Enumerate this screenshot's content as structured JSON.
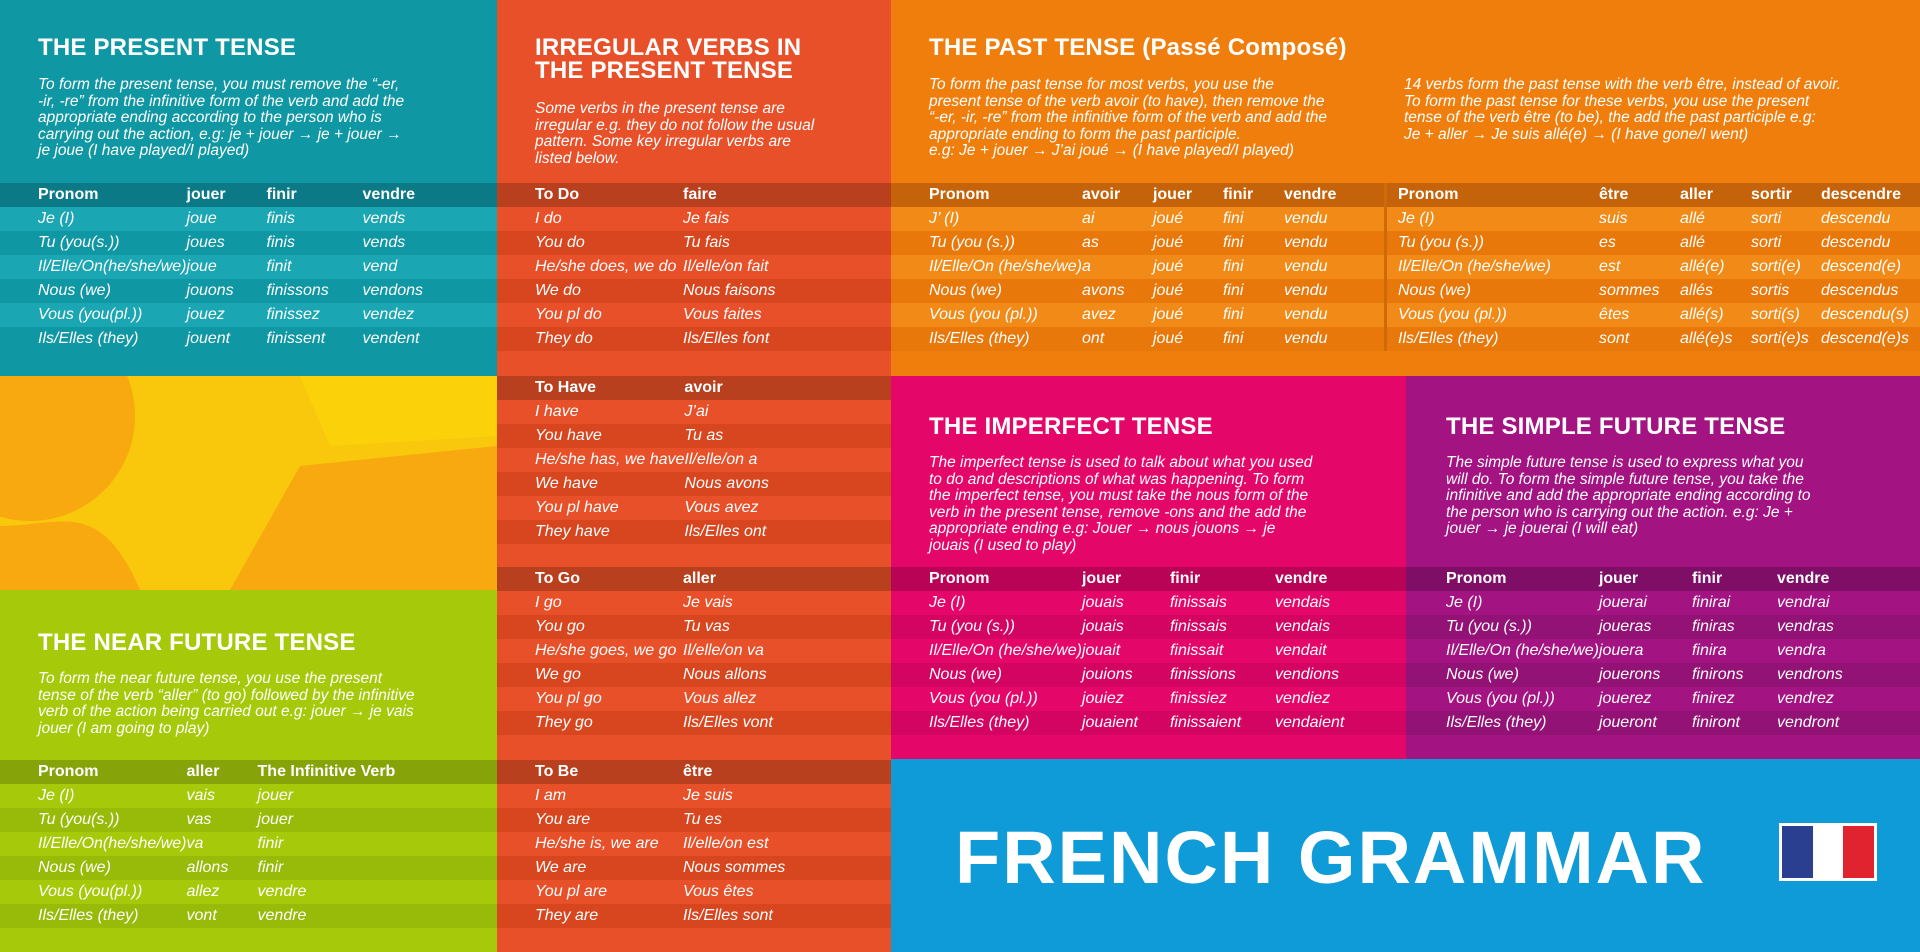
{
  "present": {
    "title": "THE PRESENT TENSE",
    "intro": [
      "To form the present tense, you must remove the “-er,",
      "-ir, -re” from the infinitive form of the verb and add the",
      "appropriate ending according to the person who is",
      "carrying out the action, e.g: je + jouer → je + jouer →",
      "je joue (I have played/I played)"
    ],
    "headers": [
      "Pronom",
      "jouer",
      "finir",
      "vendre"
    ],
    "rows": [
      [
        "Je (I)",
        "joue",
        "finis",
        "vends"
      ],
      [
        "Tu (you(s.))",
        "joues",
        "finis",
        "vends"
      ],
      [
        "Il/Elle/On(he/she/we)",
        "joue",
        "finit",
        "vend"
      ],
      [
        "Nous (we)",
        "jouons",
        "finissons",
        "vendons"
      ],
      [
        "Vous (you(pl.))",
        "jouez",
        "finissez",
        "vendez"
      ],
      [
        "Ils/Elles (they)",
        "jouent",
        "finissent",
        "vendent"
      ]
    ]
  },
  "irregular": {
    "title_line1": "IRREGULAR VERBS IN",
    "title_line2": "THE PRESENT TENSE",
    "intro": [
      "Some verbs in the present tense are",
      "irregular e.g. they do not follow the usual",
      "pattern. Some key irregular verbs are",
      "listed below."
    ],
    "faire": {
      "headers": [
        "To Do",
        "faire"
      ],
      "rows": [
        [
          "I do",
          "Je fais"
        ],
        [
          "You do",
          "Tu fais"
        ],
        [
          "He/she does, we do",
          "Il/elle/on fait"
        ],
        [
          "We do",
          "Nous faisons"
        ],
        [
          "You pl do",
          "Vous faites"
        ],
        [
          "They do",
          "Ils/Elles font"
        ]
      ]
    },
    "avoir": {
      "headers": [
        "To Have",
        "avoir"
      ],
      "rows": [
        [
          "I have",
          "J’ai"
        ],
        [
          "You have",
          "Tu as"
        ],
        [
          "He/she has, we have",
          "Il/elle/on a"
        ],
        [
          "We have",
          "Nous avons"
        ],
        [
          "You pl have",
          "Vous avez"
        ],
        [
          "They have",
          "Ils/Elles ont"
        ]
      ]
    },
    "aller": {
      "headers": [
        "To Go",
        "aller"
      ],
      "rows": [
        [
          "I go",
          "Je vais"
        ],
        [
          "You go",
          "Tu vas"
        ],
        [
          "He/she goes, we go",
          "Il/elle/on va"
        ],
        [
          "We go",
          "Nous allons"
        ],
        [
          "You pl go",
          "Vous allez"
        ],
        [
          "They go",
          "Ils/Elles vont"
        ]
      ]
    },
    "etre": {
      "headers": [
        "To Be",
        "être"
      ],
      "rows": [
        [
          "I am",
          "Je suis"
        ],
        [
          "You are",
          "Tu es"
        ],
        [
          "He/she is, we are",
          "Il/elle/on est"
        ],
        [
          "We are",
          "Nous sommes"
        ],
        [
          "You pl are",
          "Vous êtes"
        ],
        [
          "They are",
          "Ils/Elles sont"
        ]
      ]
    }
  },
  "past": {
    "title": "THE PAST TENSE (Passé Composé)",
    "intro_left": [
      "To form the past tense for most verbs, you use the",
      "present tense of the verb avoir (to have), then remove the",
      "“-er, -ir, -re” from the infinitive form of the verb and add the",
      "appropriate ending to form the past participle.",
      "e.g: Je + jouer → J’ai joué → (I have played/I played)"
    ],
    "intro_right": [
      "14 verbs form the past tense with the verb être, instead of avoir.",
      "To form the past tense for these verbs, you use the present",
      "tense of the verb être (to be), the add the past participle e.g:",
      "Je + aller → Je suis allé(e) → (I have gone/I went)"
    ],
    "avoir_headers": [
      "Pronom",
      "avoir",
      "jouer",
      "finir",
      "vendre"
    ],
    "avoir_rows": [
      [
        "J’ (I)",
        "ai",
        "joué",
        "fini",
        "vendu"
      ],
      [
        "Tu (you (s.))",
        "as",
        "joué",
        "fini",
        "vendu"
      ],
      [
        "Il/Elle/On (he/she/we)",
        "a",
        "joué",
        "fini",
        "vendu"
      ],
      [
        "Nous (we)",
        "avons",
        "joué",
        "fini",
        "vendu"
      ],
      [
        "Vous (you (pl.))",
        "avez",
        "joué",
        "fini",
        "vendu"
      ],
      [
        "Ils/Elles (they)",
        "ont",
        "joué",
        "fini",
        "vendu"
      ]
    ],
    "etre_headers": [
      "Pronom",
      "être",
      "aller",
      "sortir",
      "descendre"
    ],
    "etre_rows": [
      [
        "Je (I)",
        "suis",
        "allé",
        "sorti",
        "descendu"
      ],
      [
        "Tu (you (s.))",
        "es",
        "allé",
        "sorti",
        "descendu"
      ],
      [
        "Il/Elle/On (he/she/we)",
        "est",
        "allé(e)",
        "sorti(e)",
        "descend(e)"
      ],
      [
        "Nous (we)",
        "sommes",
        "allés",
        "sortis",
        "descendus"
      ],
      [
        "Vous (you (pl.))",
        "êtes",
        "allé(s)",
        "sorti(s)",
        "descendu(s)"
      ],
      [
        "Ils/Elles (they)",
        "sont",
        "allé(e)s",
        "sorti(e)s",
        "descend(e)s"
      ]
    ]
  },
  "imperfect": {
    "title": "THE IMPERFECT TENSE",
    "intro": [
      "The imperfect tense is used to talk about what you used",
      "to do and descriptions of what was happening. To form",
      "the imperfect tense, you must take the nous form of the",
      "verb in the present tense, remove -ons and the add the",
      "appropriate ending e.g: Jouer → nous jouons → je",
      "jouais (I used to play)"
    ],
    "headers": [
      "Pronom",
      "jouer",
      "finir",
      "vendre"
    ],
    "rows": [
      [
        "Je (I)",
        "jouais",
        "finissais",
        "vendais"
      ],
      [
        "Tu (you (s.))",
        "jouais",
        "finissais",
        "vendais"
      ],
      [
        "Il/Elle/On (he/she/we)",
        "jouait",
        "finissait",
        "vendait"
      ],
      [
        "Nous (we)",
        "jouions",
        "finissions",
        "vendions"
      ],
      [
        "Vous (you (pl.))",
        "jouiez",
        "finissiez",
        "vendiez"
      ],
      [
        "Ils/Elles (they)",
        "jouaient",
        "finissaient",
        "vendaient"
      ]
    ]
  },
  "future": {
    "title": "THE SIMPLE FUTURE TENSE",
    "intro": [
      "The simple future tense is used to express what you",
      "will do. To form the simple future tense, you take the",
      "infinitive and add the appropriate ending according to",
      "the person who is carrying out the action. e.g: Je +",
      "jouer → je jouerai (I will eat)"
    ],
    "headers": [
      "Pronom",
      "jouer",
      "finir",
      "vendre"
    ],
    "rows": [
      [
        "Je (I)",
        "jouerai",
        "finirai",
        "vendrai"
      ],
      [
        "Tu (you (s.))",
        "joueras",
        "finiras",
        "vendras"
      ],
      [
        "Il/Elle/On (he/she/we)",
        "jouera",
        "finira",
        "vendra"
      ],
      [
        "Nous (we)",
        "jouerons",
        "finirons",
        "vendrons"
      ],
      [
        "Vous (you (pl.))",
        "jouerez",
        "finirez",
        "vendrez"
      ],
      [
        "Ils/Elles (they)",
        "joueront",
        "finiront",
        "vendront"
      ]
    ]
  },
  "near_future": {
    "title": "THE NEAR FUTURE TENSE",
    "intro": [
      "To form the near future tense, you use the present",
      "tense of the verb “aller” (to go) followed by the infinitive",
      "verb of the action being carried out e.g: jouer → je vais",
      "jouer (I am going to play)"
    ],
    "headers": [
      "Pronom",
      "aller",
      "The Infinitive Verb"
    ],
    "rows": [
      [
        "Je (I)",
        "vais",
        "jouer"
      ],
      [
        "Tu (you(s.))",
        "vas",
        "jouer"
      ],
      [
        "Il/Elle/On(he/she/we)",
        "va",
        "finir"
      ],
      [
        "Nous (we)",
        "allons",
        "finir"
      ],
      [
        "Vous (you(pl.))",
        "allez",
        "vendre"
      ],
      [
        "Ils/Elles (they)",
        "vont",
        "vendre"
      ]
    ]
  },
  "banner": {
    "title": "FRENCH GRAMMAR",
    "flag_colors": [
      "#2a3f8f",
      "#ffffff",
      "#e1232f"
    ]
  }
}
